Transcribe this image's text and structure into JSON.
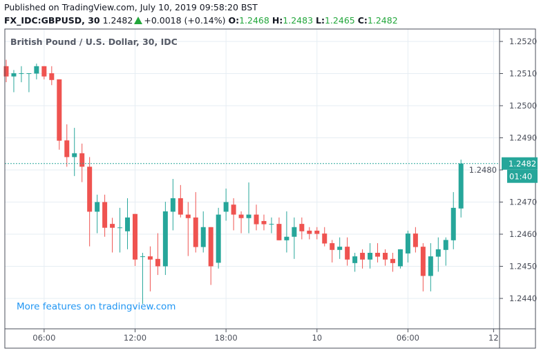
{
  "header": {
    "published": "Published on TradingView.com, July 10, 2019 09:58:20 BST",
    "symbol": "FX_IDC:GBPUSD, 30",
    "last": "1.2482",
    "change": "+0.0018 (+0.14%)",
    "o_label": "O:",
    "o": "1.2468",
    "h_label": "H:",
    "h": "1.2483",
    "l_label": "L:",
    "l": "1.2465",
    "c_label": "C:",
    "c": "1.2482"
  },
  "legend_title": "British Pound / U.S. Dollar, 30, IDC",
  "watermark": "More features on tradingview.com",
  "colors": {
    "up": "#26a69a",
    "down": "#ef5350",
    "grid": "#e6edf3",
    "axis": "#4a4e59",
    "watermark": "#2196f3"
  },
  "chart_data": {
    "type": "candlestick",
    "interval": "30",
    "ylim": [
      1.2432,
      1.2528
    ],
    "y_ticks": [
      "1.2520",
      "1.2510",
      "1.2500",
      "1.2490",
      "1.2480",
      "1.2470",
      "1.2460",
      "1.2450",
      "1.2440"
    ],
    "x_ticks": [
      {
        "label": "06:00",
        "bar": 5
      },
      {
        "label": "12:00",
        "bar": 17
      },
      {
        "label": "18:00",
        "bar": 29
      },
      {
        "label": "10",
        "bar": 41
      },
      {
        "label": "06:00",
        "bar": 53
      },
      {
        "label": "12",
        "bar": 64.3
      }
    ],
    "last_price": {
      "value": 1.2482,
      "label": "1.2482",
      "countdown": "01:40"
    },
    "ohlc": [
      [
        1.25123,
        1.25143,
        1.25073,
        1.25091
      ],
      [
        1.25091,
        1.25111,
        1.25042,
        1.25101
      ],
      [
        1.25101,
        1.25123,
        1.25073,
        1.25101
      ],
      [
        1.25101,
        1.25101,
        1.25042,
        1.25101
      ],
      [
        1.251,
        1.25131,
        1.25082,
        1.25123
      ],
      [
        1.25123,
        1.25123,
        1.25082,
        1.25091
      ],
      [
        1.25101,
        1.25123,
        1.25064,
        1.2508
      ],
      [
        1.25082,
        1.25082,
        1.24863,
        1.24891
      ],
      [
        1.24892,
        1.24942,
        1.2481,
        1.2484
      ],
      [
        1.2484,
        1.24931,
        1.24781,
        1.24852
      ],
      [
        1.24852,
        1.24882,
        1.24762,
        1.2481
      ],
      [
        1.2481,
        1.2484,
        1.24562,
        1.2467
      ],
      [
        1.2467,
        1.24723,
        1.24603,
        1.247
      ],
      [
        1.247,
        1.24723,
        1.24592,
        1.2462
      ],
      [
        1.24632,
        1.24651,
        1.24543,
        1.2462
      ],
      [
        1.24621,
        1.24682,
        1.24543,
        1.24621
      ],
      [
        1.24609,
        1.24712,
        1.24553,
        1.24652
      ],
      [
        1.24663,
        1.24663,
        1.24501,
        1.24521
      ],
      [
        1.24531,
        1.24542,
        1.24383,
        1.24531
      ],
      [
        1.24531,
        1.24562,
        1.24422,
        1.24521
      ],
      [
        1.24523,
        1.24603,
        1.24473,
        1.245
      ],
      [
        1.245,
        1.24701,
        1.24473,
        1.24671
      ],
      [
        1.2467,
        1.24772,
        1.24612,
        1.24712
      ],
      [
        1.24712,
        1.24753,
        1.24652,
        1.24661
      ],
      [
        1.24661,
        1.247,
        1.24532,
        1.2465
      ],
      [
        1.24652,
        1.24731,
        1.24543,
        1.2456
      ],
      [
        1.2456,
        1.24671,
        1.24543,
        1.24622
      ],
      [
        1.24622,
        1.24622,
        1.24442,
        1.245
      ],
      [
        1.24511,
        1.24682,
        1.24493,
        1.24661
      ],
      [
        1.2467,
        1.24742,
        1.24642,
        1.247
      ],
      [
        1.24692,
        1.24712,
        1.24612,
        1.24661
      ],
      [
        1.24661,
        1.24671,
        1.24603,
        1.2465
      ],
      [
        1.2465,
        1.24761,
        1.24603,
        1.24661
      ],
      [
        1.24661,
        1.24692,
        1.24612,
        1.24631
      ],
      [
        1.24641,
        1.24661,
        1.24612,
        1.24631
      ],
      [
        1.24632,
        1.24652,
        1.24603,
        1.24632
      ],
      [
        1.24632,
        1.24652,
        1.24581,
        1.24581
      ],
      [
        1.24581,
        1.24671,
        1.24543,
        1.24592
      ],
      [
        1.24592,
        1.24652,
        1.24523,
        1.24622
      ],
      [
        1.24632,
        1.24652,
        1.24584,
        1.24609
      ],
      [
        1.24611,
        1.24622,
        1.24584,
        1.24601
      ],
      [
        1.24611,
        1.24622,
        1.24584,
        1.24601
      ],
      [
        1.24602,
        1.24622,
        1.24562,
        1.24571
      ],
      [
        1.24572,
        1.24582,
        1.24512,
        1.24551
      ],
      [
        1.24551,
        1.2459,
        1.24523,
        1.24561
      ],
      [
        1.24561,
        1.2459,
        1.24502,
        1.24521
      ],
      [
        1.2451,
        1.24542,
        1.24483,
        1.24531
      ],
      [
        1.24542,
        1.24553,
        1.24493,
        1.24521
      ],
      [
        1.24521,
        1.24572,
        1.24493,
        1.24542
      ],
      [
        1.24542,
        1.24572,
        1.24512,
        1.2453
      ],
      [
        1.24542,
        1.24553,
        1.24502,
        1.24521
      ],
      [
        1.24523,
        1.24542,
        1.24483,
        1.2451
      ],
      [
        1.245,
        1.24553,
        1.24493,
        1.24553
      ],
      [
        1.2454,
        1.24611,
        1.24512,
        1.24602
      ],
      [
        1.24602,
        1.24622,
        1.24543,
        1.2456
      ],
      [
        1.24561,
        1.24572,
        1.24422,
        1.2447
      ],
      [
        1.2447,
        1.24572,
        1.24422,
        1.24531
      ],
      [
        1.2453,
        1.2459,
        1.24483,
        1.24553
      ],
      [
        1.24551,
        1.2459,
        1.24502,
        1.24582
      ],
      [
        1.24581,
        1.24731,
        1.24553,
        1.24682
      ],
      [
        1.2468,
        1.24832,
        1.24652,
        1.2482
      ]
    ]
  }
}
